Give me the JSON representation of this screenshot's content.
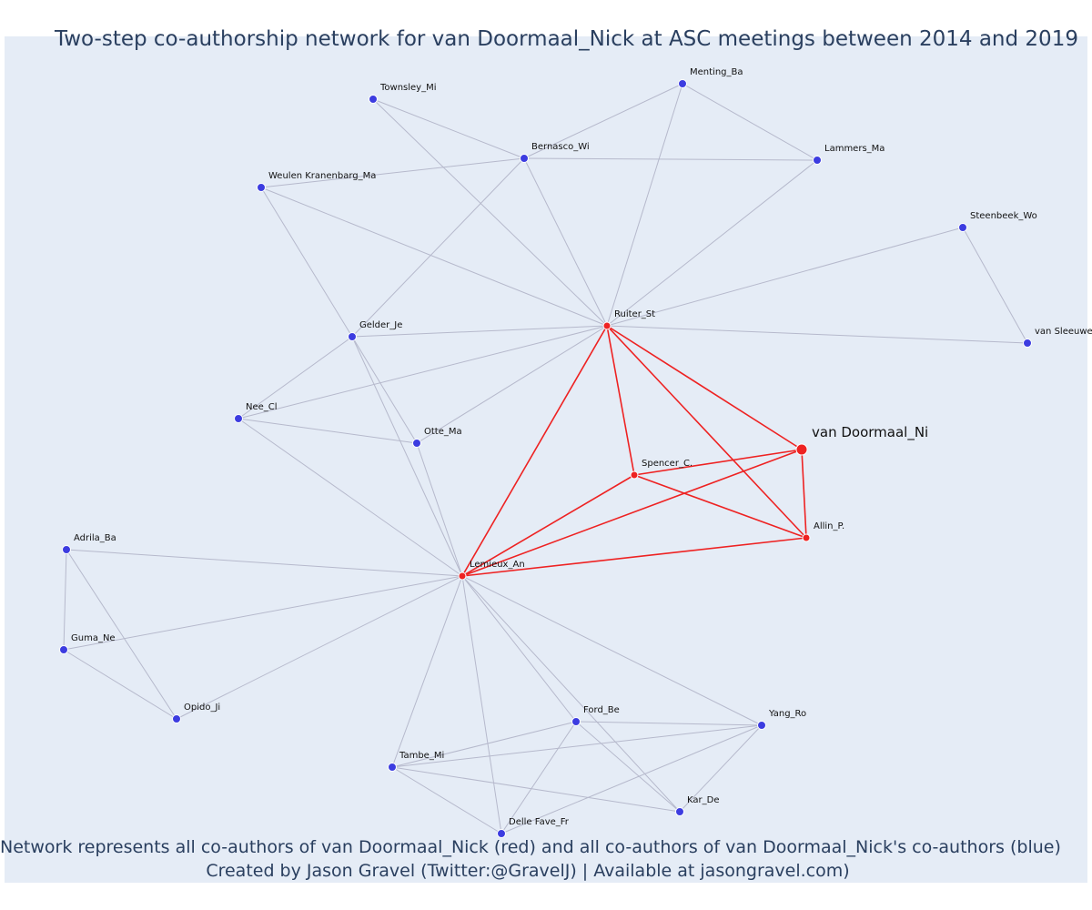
{
  "title": "Two-step co-authorship network for van Doormaal_Nick at ASC meetings between 2014 and 2019",
  "caption": {
    "line1": "Network represents all co-authors of van Doormaal_Nick (red) and all co-authors of van Doormaal_Nick's co-authors (blue)",
    "line2": "Created by Jason Gravel (Twitter:@GravelJ) | Available at jasongravel.com)"
  },
  "colors": {
    "background": "#e5ecf6",
    "first_degree": "#ee2222",
    "second_degree": "#3c3ce0",
    "second_degree_edge": "#b6b9cc",
    "text": "#2a3f5f"
  },
  "nodes": [
    {
      "id": "vanDoormaal",
      "label": "van Doormaal_Ni",
      "group": "focal"
    },
    {
      "id": "Ruiter",
      "label": "Ruiter_St",
      "group": "coauthor"
    },
    {
      "id": "Spencer",
      "label": "Spencer_C.",
      "group": "coauthor"
    },
    {
      "id": "Allin",
      "label": "Allin_P.",
      "group": "coauthor"
    },
    {
      "id": "Lemieux",
      "label": "Lemieux_An",
      "group": "coauthor"
    },
    {
      "id": "Townsley",
      "label": "Townsley_Mi",
      "group": "second"
    },
    {
      "id": "Menting",
      "label": "Menting_Ba",
      "group": "second"
    },
    {
      "id": "Bernasco",
      "label": "Bernasco_Wi",
      "group": "second"
    },
    {
      "id": "Lammers",
      "label": "Lammers_Ma",
      "group": "second"
    },
    {
      "id": "Weulen",
      "label": "Weulen Kranenbarg_Ma",
      "group": "second"
    },
    {
      "id": "Steenbeek",
      "label": "Steenbeek_Wo",
      "group": "second"
    },
    {
      "id": "vanSleeuwen",
      "label": "van Sleeuwe",
      "group": "second"
    },
    {
      "id": "Gelder",
      "label": "Gelder_Je",
      "group": "second"
    },
    {
      "id": "Nee",
      "label": "Nee_Cl",
      "group": "second"
    },
    {
      "id": "Otte",
      "label": "Otte_Ma",
      "group": "second"
    },
    {
      "id": "Adrila",
      "label": "Adrila_Ba",
      "group": "second"
    },
    {
      "id": "Guma",
      "label": "Guma_Ne",
      "group": "second"
    },
    {
      "id": "Opido",
      "label": "Opido_Ji",
      "group": "second"
    },
    {
      "id": "Ford",
      "label": "Ford_Be",
      "group": "second"
    },
    {
      "id": "Yang",
      "label": "Yang_Ro",
      "group": "second"
    },
    {
      "id": "Tambe",
      "label": "Tambe_Mi",
      "group": "second"
    },
    {
      "id": "Kar",
      "label": "Kar_De",
      "group": "second"
    },
    {
      "id": "DelleFave",
      "label": "Delle Fave_Fr",
      "group": "second"
    }
  ],
  "edges": [
    [
      "Ruiter",
      "Spencer"
    ],
    [
      "Ruiter",
      "vanDoormaal"
    ],
    [
      "Ruiter",
      "Allin"
    ],
    [
      "Ruiter",
      "Lemieux"
    ],
    [
      "Spencer",
      "vanDoormaal"
    ],
    [
      "Spencer",
      "Allin"
    ],
    [
      "Spencer",
      "Lemieux"
    ],
    [
      "vanDoormaal",
      "Allin"
    ],
    [
      "vanDoormaal",
      "Lemieux"
    ],
    [
      "Allin",
      "Lemieux"
    ],
    [
      "Townsley",
      "Bernasco"
    ],
    [
      "Townsley",
      "Ruiter"
    ],
    [
      "Menting",
      "Bernasco"
    ],
    [
      "Menting",
      "Lammers"
    ],
    [
      "Menting",
      "Ruiter"
    ],
    [
      "Bernasco",
      "Lammers"
    ],
    [
      "Bernasco",
      "Weulen"
    ],
    [
      "Bernasco",
      "Ruiter"
    ],
    [
      "Bernasco",
      "Gelder"
    ],
    [
      "Lammers",
      "Ruiter"
    ],
    [
      "Weulen",
      "Ruiter"
    ],
    [
      "Weulen",
      "Gelder"
    ],
    [
      "Steenbeek",
      "Ruiter"
    ],
    [
      "Steenbeek",
      "vanSleeuwen"
    ],
    [
      "vanSleeuwen",
      "Ruiter"
    ],
    [
      "Gelder",
      "Ruiter"
    ],
    [
      "Gelder",
      "Nee"
    ],
    [
      "Gelder",
      "Otte"
    ],
    [
      "Gelder",
      "Lemieux"
    ],
    [
      "Nee",
      "Ruiter"
    ],
    [
      "Nee",
      "Otte"
    ],
    [
      "Nee",
      "Lemieux"
    ],
    [
      "Otte",
      "Ruiter"
    ],
    [
      "Otte",
      "Lemieux"
    ],
    [
      "Adrila",
      "Lemieux"
    ],
    [
      "Adrila",
      "Guma"
    ],
    [
      "Adrila",
      "Opido"
    ],
    [
      "Guma",
      "Lemieux"
    ],
    [
      "Guma",
      "Opido"
    ],
    [
      "Opido",
      "Lemieux"
    ],
    [
      "Lemieux",
      "Ford"
    ],
    [
      "Lemieux",
      "Yang"
    ],
    [
      "Lemieux",
      "Tambe"
    ],
    [
      "Lemieux",
      "Kar"
    ],
    [
      "Lemieux",
      "DelleFave"
    ],
    [
      "Ford",
      "Yang"
    ],
    [
      "Ford",
      "Tambe"
    ],
    [
      "Ford",
      "Kar"
    ],
    [
      "Ford",
      "DelleFave"
    ],
    [
      "Yang",
      "Tambe"
    ],
    [
      "Yang",
      "Kar"
    ],
    [
      "Yang",
      "DelleFave"
    ],
    [
      "Tambe",
      "Kar"
    ],
    [
      "Tambe",
      "DelleFave"
    ]
  ]
}
